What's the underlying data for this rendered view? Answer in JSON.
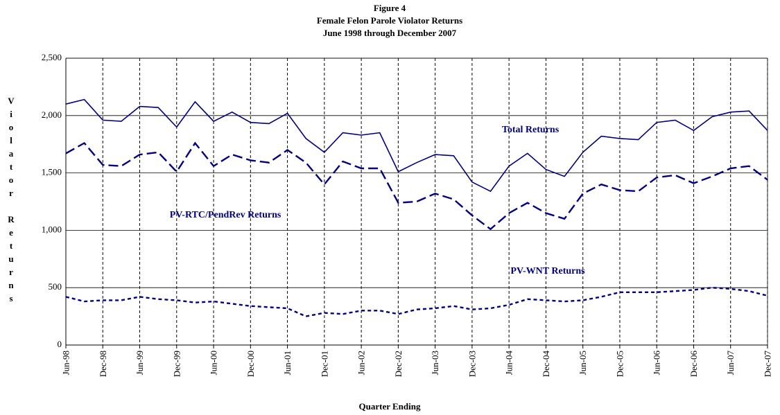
{
  "chart_data": {
    "type": "line",
    "title": "Figure 4",
    "subtitle": [
      "Female Felon Parole Violator Returns",
      "June 1998 through December 2007"
    ],
    "x_label": "Quarter Ending",
    "y_label": "Violator Returns",
    "categories": [
      "Jun-98",
      null,
      "Dec-98",
      null,
      "Jun-99",
      null,
      "Dec-99",
      null,
      "Jun-00",
      null,
      "Dec-00",
      null,
      "Jun-01",
      null,
      "Dec-01",
      null,
      "Jun-02",
      null,
      "Dec-02",
      null,
      "Jun-03",
      null,
      "Dec-03",
      null,
      "Jun-04",
      null,
      "Dec-04",
      null,
      "Jun-05",
      null,
      "Dec-05",
      null,
      "Jun-06",
      null,
      "Dec-06",
      null,
      "Jun-07",
      null,
      "Dec-07"
    ],
    "series": [
      {
        "name": "Total Returns",
        "color": "#000080",
        "line_style": "solid",
        "values": [
          2100,
          2140,
          1960,
          1950,
          2080,
          2070,
          1900,
          2120,
          1950,
          2030,
          1940,
          1930,
          2020,
          1800,
          1680,
          1850,
          1830,
          1850,
          1510,
          1590,
          1660,
          1650,
          1420,
          1340,
          1560,
          1670,
          1530,
          1470,
          1680,
          1820,
          1800,
          1790,
          1940,
          1960,
          1870,
          1990,
          2030,
          2040,
          1870
        ]
      },
      {
        "name": "PV-RTC/PendRev Returns",
        "color": "#000080",
        "line_style": "dashed",
        "values": [
          1670,
          1760,
          1570,
          1560,
          1660,
          1680,
          1510,
          1760,
          1560,
          1660,
          1610,
          1590,
          1700,
          1590,
          1400,
          1600,
          1540,
          1540,
          1240,
          1250,
          1320,
          1270,
          1130,
          1010,
          1150,
          1240,
          1150,
          1100,
          1320,
          1400,
          1350,
          1340,
          1460,
          1480,
          1410,
          1470,
          1540,
          1560,
          1440
        ]
      },
      {
        "name": "PV-WNT Returns",
        "color": "#000080",
        "line_style": "dotted",
        "values": [
          420,
          380,
          390,
          390,
          420,
          400,
          390,
          370,
          380,
          360,
          340,
          330,
          320,
          250,
          280,
          270,
          300,
          300,
          270,
          310,
          320,
          340,
          310,
          320,
          350,
          400,
          390,
          380,
          390,
          420,
          460,
          460,
          460,
          470,
          480,
          500,
          490,
          470,
          430
        ]
      }
    ],
    "ylim": [
      0,
      2500
    ],
    "yticks": [
      0,
      500,
      {
        "value": 1000,
        "label": "1,000"
      },
      {
        "value": 1500,
        "label": "1,500"
      },
      {
        "value": 2000,
        "label": "2,000"
      },
      {
        "value": 2500,
        "label": "2,500"
      }
    ],
    "grid": true
  }
}
